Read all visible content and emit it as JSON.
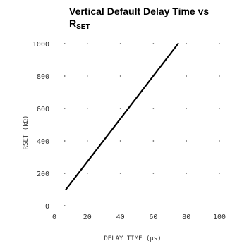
{
  "chart_data": {
    "type": "line",
    "title": "Vertical Default Delay Time vs R",
    "title_subscript": "SET",
    "xlabel": "DELAY TIME (μs)",
    "ylabel": "RSET (kΩ)",
    "xlim": [
      0,
      100
    ],
    "ylim": [
      0,
      1000
    ],
    "x_ticks": [
      "0",
      "20",
      "40",
      "60",
      "80",
      "100"
    ],
    "y_ticks": [
      "0",
      "200",
      "400",
      "600",
      "800",
      "1000"
    ],
    "grid": "dotted",
    "series": [
      {
        "x": [
          7,
          75
        ],
        "y": [
          100,
          1000
        ]
      }
    ],
    "colors": {
      "line": "#000000",
      "text": "#333333"
    }
  }
}
